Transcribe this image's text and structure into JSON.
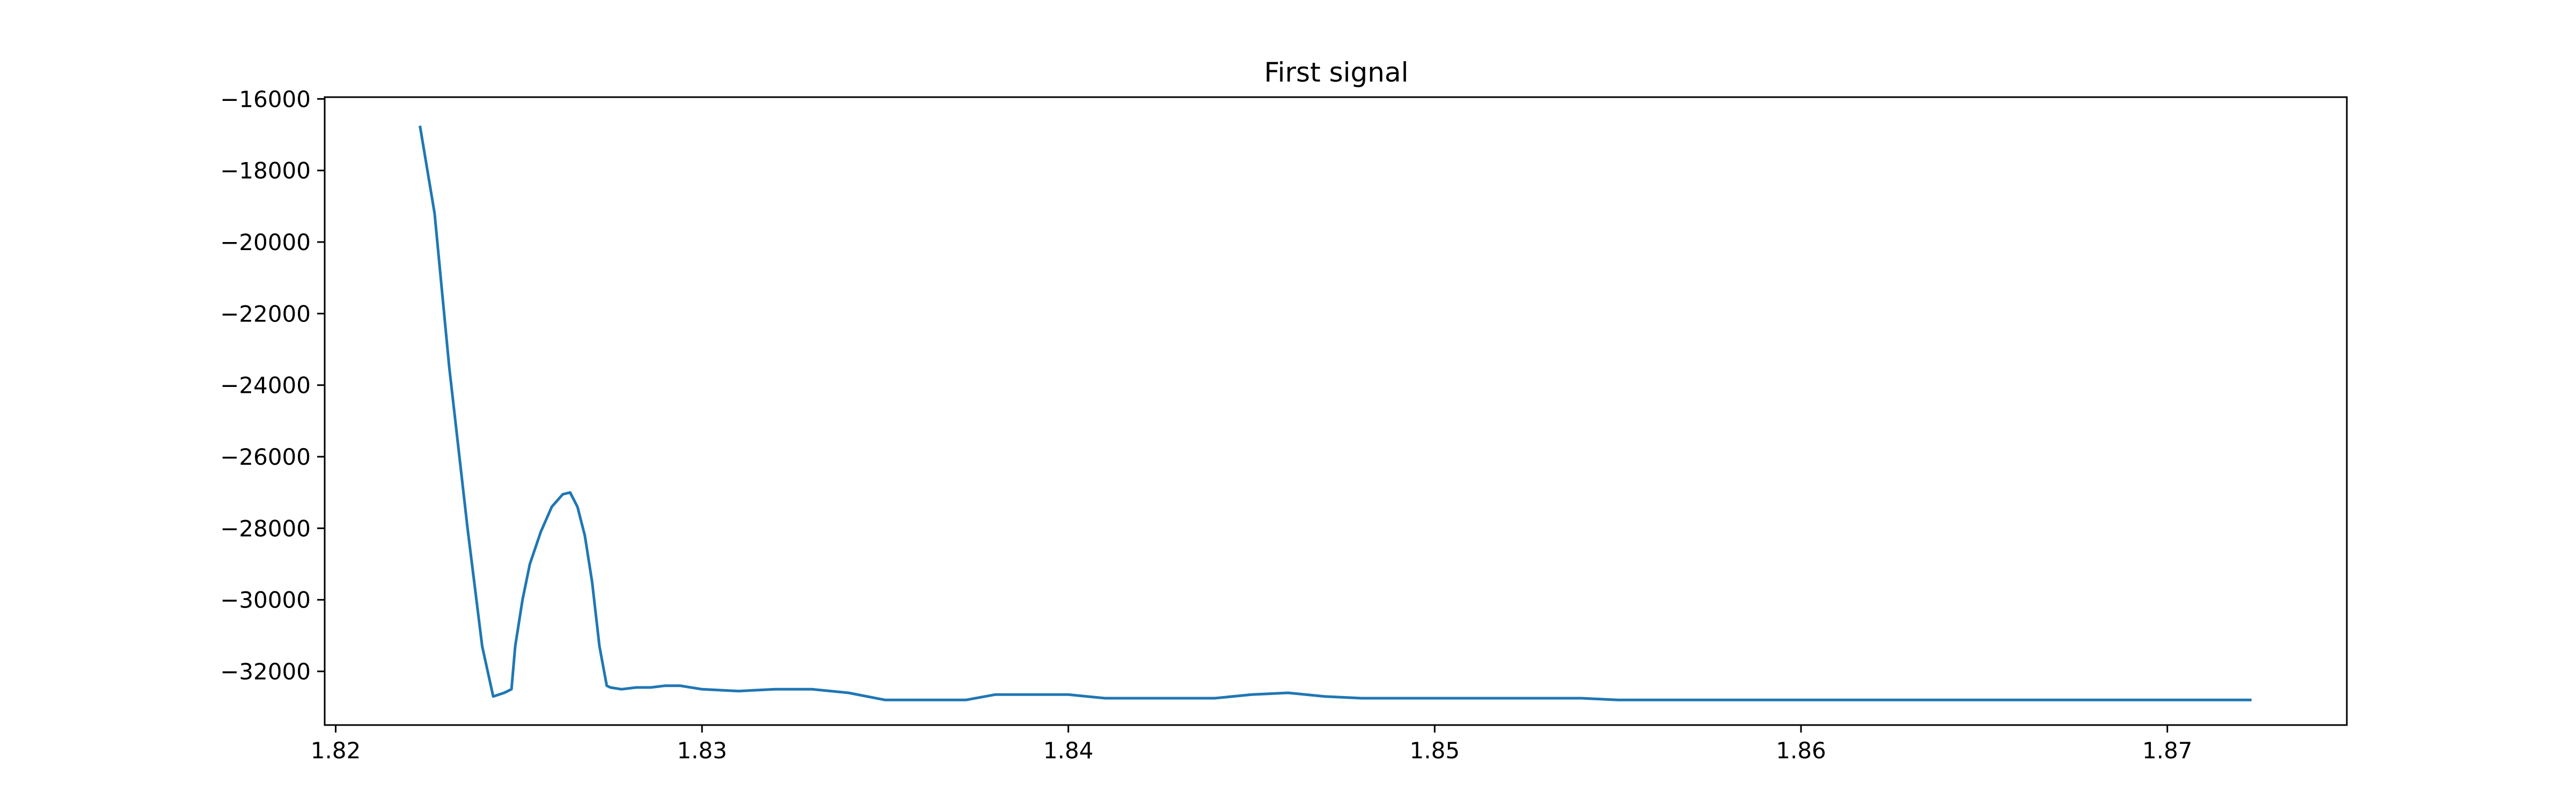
{
  "chart_data": {
    "type": "line",
    "title": "First signal",
    "xlabel": "",
    "ylabel": "",
    "xlim": [
      1.8197,
      1.8749
    ],
    "ylim": [
      -33500,
      -15950
    ],
    "x_ticks": [
      1.82,
      1.83,
      1.84,
      1.85,
      1.86,
      1.87
    ],
    "x_tick_labels": [
      "1.82",
      "1.83",
      "1.84",
      "1.85",
      "1.86",
      "1.87"
    ],
    "y_ticks": [
      -16000,
      -18000,
      -20000,
      -22000,
      -24000,
      -26000,
      -28000,
      -30000,
      -32000
    ],
    "y_tick_labels": [
      "−16000",
      "−18000",
      "−20000",
      "−22000",
      "−24000",
      "−26000",
      "−28000",
      "−30000",
      "−32000"
    ],
    "grid": false,
    "line_color": "#1f77b4",
    "series": [
      {
        "x": [
          1.8223,
          1.8227,
          1.8231,
          1.8236,
          1.824,
          1.8243,
          1.8246,
          1.8248,
          1.8249,
          1.8251,
          1.8253,
          1.8256,
          1.8259,
          1.8262,
          1.8264,
          1.8266,
          1.8268,
          1.827,
          1.8272,
          1.8274,
          1.8275,
          1.8278,
          1.8282,
          1.8286,
          1.829,
          1.8294,
          1.83,
          1.831,
          1.832,
          1.833,
          1.834,
          1.835,
          1.836,
          1.8372,
          1.838,
          1.839,
          1.84,
          1.841,
          1.842,
          1.843,
          1.844,
          1.845,
          1.846,
          1.847,
          1.848,
          1.849,
          1.85,
          1.851,
          1.852,
          1.853,
          1.854,
          1.855,
          1.856,
          1.858,
          1.86,
          1.865,
          1.87,
          1.8723
        ],
        "y": [
          -16750,
          -19200,
          -23500,
          -28000,
          -31300,
          -32700,
          -32600,
          -32500,
          -31300,
          -30000,
          -29000,
          -28100,
          -27400,
          -27050,
          -27000,
          -27400,
          -28200,
          -29500,
          -31300,
          -32400,
          -32450,
          -32500,
          -32450,
          -32450,
          -32400,
          -32400,
          -32500,
          -32550,
          -32500,
          -32500,
          -32600,
          -32800,
          -32800,
          -32800,
          -32650,
          -32650,
          -32650,
          -32750,
          -32750,
          -32750,
          -32750,
          -32650,
          -32600,
          -32700,
          -32750,
          -32750,
          -32750,
          -32750,
          -32750,
          -32750,
          -32750,
          -32800,
          -32800,
          -32800,
          -32800,
          -32800,
          -32800,
          -32800
        ]
      }
    ]
  }
}
